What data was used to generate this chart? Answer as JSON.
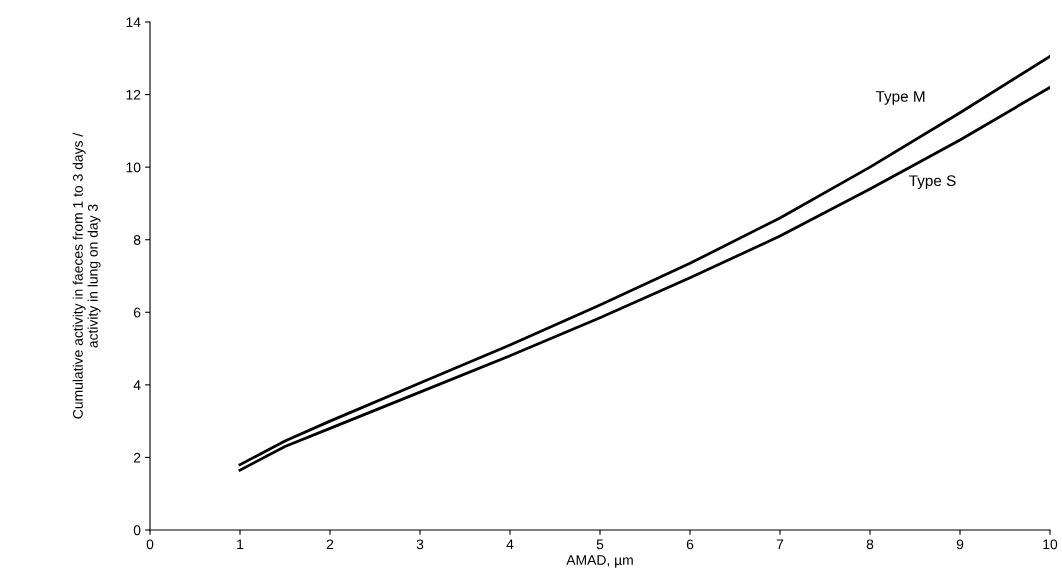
{
  "chart_data": {
    "type": "line",
    "xlabel": "AMAD, µm",
    "ylabel": "Cumulative activity in faeces from 1 to 3 days /\nactivity in lung on day 3",
    "x": [
      1,
      1.5,
      2,
      3,
      4,
      5,
      6,
      7,
      8,
      9,
      10
    ],
    "series": [
      {
        "name": "Type M",
        "color": "#000000",
        "values": [
          1.8,
          2.45,
          3.0,
          4.05,
          5.1,
          6.2,
          7.35,
          8.6,
          10.0,
          11.5,
          13.05
        ]
      },
      {
        "name": "Type S",
        "color": "#000000",
        "values": [
          1.65,
          2.3,
          2.8,
          3.8,
          4.8,
          5.85,
          6.95,
          8.1,
          9.4,
          10.75,
          12.2
        ]
      }
    ],
    "xlim": [
      0,
      10
    ],
    "xticks": [
      0,
      1,
      2,
      3,
      4,
      5,
      6,
      7,
      8,
      9,
      10
    ],
    "ylim": [
      0,
      14
    ],
    "yticks": [
      0,
      2,
      4,
      6,
      8,
      10,
      12,
      14
    ],
    "grid": false,
    "legend": false,
    "marker": "none",
    "line_style": "solid"
  }
}
